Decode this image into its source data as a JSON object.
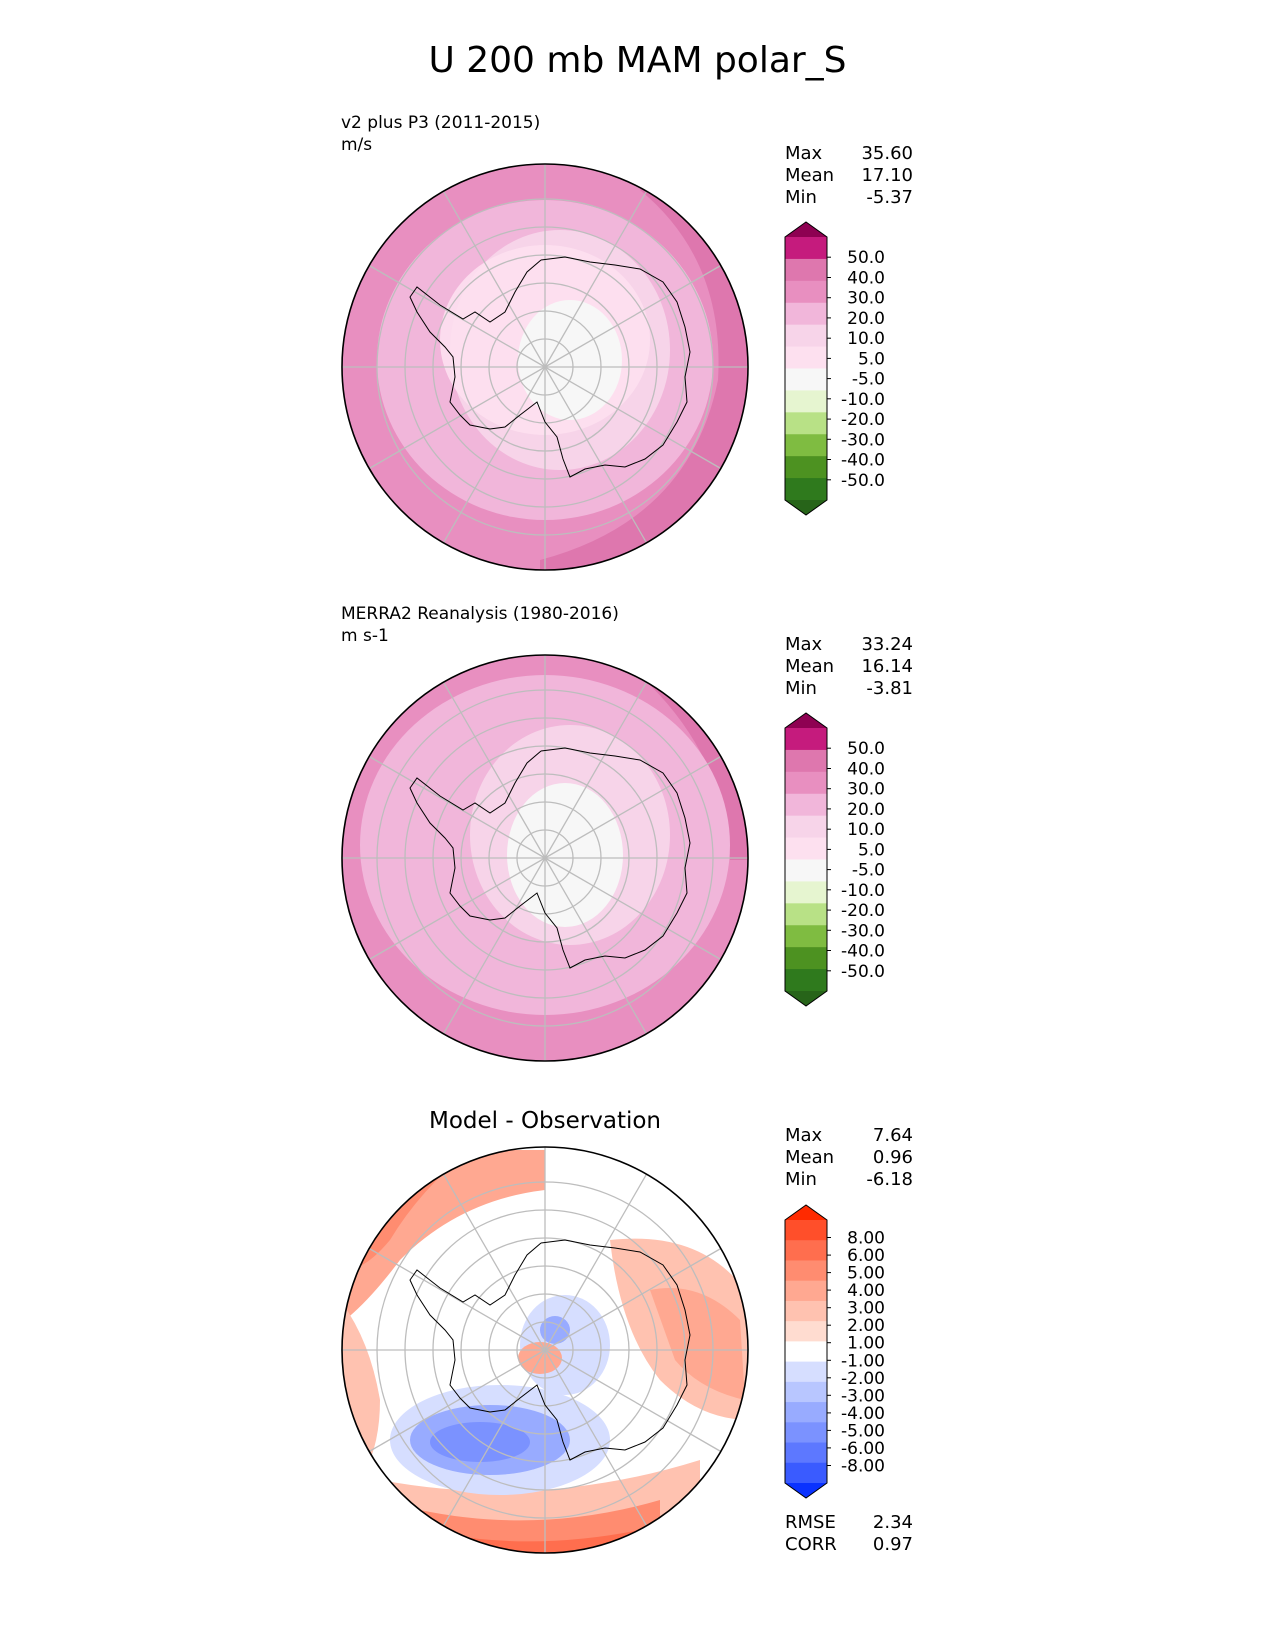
{
  "title": "U 200 mb MAM polar_S",
  "colors": {
    "map_outline": "#000000",
    "gridline": "#bdbdbd",
    "coast": "#000000"
  },
  "panels": [
    {
      "title_line1": "v2 plus P3 (2011-2015)",
      "title_line2": "m/s",
      "stats": [
        {
          "label": "Max",
          "value": "35.60"
        },
        {
          "label": "Mean",
          "value": "17.10"
        },
        {
          "label": "Min",
          "value": "-5.37"
        }
      ],
      "colorbar": {
        "labels": [
          "50.0",
          "40.0",
          "30.0",
          "20.0",
          "10.0",
          "5.0",
          "-5.0",
          "-10.0",
          "-20.0",
          "-30.0",
          "-40.0",
          "-50.0"
        ],
        "colors_top_to_bottom": [
          "#8e0152",
          "#c51b7d",
          "#de77ae",
          "#e88fc0",
          "#f1b6da",
          "#f7d4e9",
          "#fde0ef",
          "#f7f7f7",
          "#e6f5d0",
          "#b8e186",
          "#7fbc41",
          "#4d9221",
          "#2f7a1d",
          "#276419"
        ]
      }
    },
    {
      "title_line1": "MERRA2 Reanalysis (1980-2016)",
      "title_line2": "m s-1",
      "stats": [
        {
          "label": "Max",
          "value": "33.24"
        },
        {
          "label": "Mean",
          "value": "16.14"
        },
        {
          "label": "Min",
          "value": "-3.81"
        }
      ],
      "colorbar": {
        "labels": [
          "50.0",
          "40.0",
          "30.0",
          "20.0",
          "10.0",
          "5.0",
          "-5.0",
          "-10.0",
          "-20.0",
          "-30.0",
          "-40.0",
          "-50.0"
        ],
        "colors_top_to_bottom": [
          "#8e0152",
          "#c51b7d",
          "#de77ae",
          "#e88fc0",
          "#f1b6da",
          "#f7d4e9",
          "#fde0ef",
          "#f7f7f7",
          "#e6f5d0",
          "#b8e186",
          "#7fbc41",
          "#4d9221",
          "#2f7a1d",
          "#276419"
        ]
      }
    },
    {
      "title_center": "Model - Observation",
      "stats": [
        {
          "label": "Max",
          "value": "7.64"
        },
        {
          "label": "Mean",
          "value": "0.96"
        },
        {
          "label": "Min",
          "value": "-6.18"
        }
      ],
      "bottom_stats": [
        {
          "label": "RMSE",
          "value": "2.34"
        },
        {
          "label": "CORR",
          "value": "0.97"
        }
      ],
      "colorbar": {
        "labels": [
          "8.00",
          "6.00",
          "5.00",
          "4.00",
          "3.00",
          "2.00",
          "1.00",
          "-1.00",
          "-2.00",
          "-3.00",
          "-4.00",
          "-5.00",
          "-6.00",
          "-8.00"
        ],
        "colors_top_to_bottom": [
          "#ff2a00",
          "#ff4f2a",
          "#ff6e4e",
          "#ff8c70",
          "#ffa891",
          "#ffc2b0",
          "#ffdcd0",
          "#ffffff",
          "#d6deff",
          "#b8c6ff",
          "#98abff",
          "#7b92ff",
          "#5d78ff",
          "#3a5bff",
          "#0a32ff"
        ]
      }
    }
  ],
  "chart_data": [
    {
      "type": "heatmap",
      "projection": "south polar stereographic",
      "title": "v2 plus P3 (2011-2015)",
      "units": "m/s",
      "levels": [
        -50,
        -40,
        -30,
        -20,
        -10,
        -5,
        5,
        10,
        20,
        30,
        40,
        50
      ],
      "max": 35.6,
      "mean": 17.1,
      "min": -5.37,
      "zonal_bands_outer_to_inner": [
        {
          "range": "20-30",
          "color": "#e88fc0"
        },
        {
          "range": "10-20",
          "color": "#f1b6da"
        },
        {
          "range": "5-10",
          "color": "#f7d4e9"
        },
        {
          "range": "-5-5",
          "color": "#f7f7f7"
        }
      ],
      "feature": "30-40 m/s jet along outer edge on the east/south-east side"
    },
    {
      "type": "heatmap",
      "projection": "south polar stereographic",
      "title": "MERRA2 Reanalysis (1980-2016)",
      "units": "m s-1",
      "levels": [
        -50,
        -40,
        -30,
        -20,
        -10,
        -5,
        5,
        10,
        20,
        30,
        40,
        50
      ],
      "max": 33.24,
      "mean": 16.14,
      "min": -3.81,
      "zonal_bands_outer_to_inner": [
        {
          "range": "20-30",
          "color": "#e88fc0"
        },
        {
          "range": "10-20",
          "color": "#f1b6da"
        },
        {
          "range": "5-10",
          "color": "#f7d4e9"
        },
        {
          "range": "-5-5",
          "color": "#f7f7f7"
        }
      ],
      "feature": "30-40 m/s band along north-east edge"
    },
    {
      "type": "heatmap",
      "projection": "south polar stereographic",
      "title": "Model - Observation",
      "levels": [
        -8,
        -6,
        -5,
        -4,
        -3,
        -2,
        -1,
        1,
        2,
        3,
        4,
        5,
        6,
        8
      ],
      "max": 7.64,
      "mean": 0.96,
      "min": -6.18,
      "rmse": 2.34,
      "corr": 0.97,
      "feature": "positive (red) anomalies at outer edge NW, E and S; negative (blue) region SW of pole"
    }
  ]
}
